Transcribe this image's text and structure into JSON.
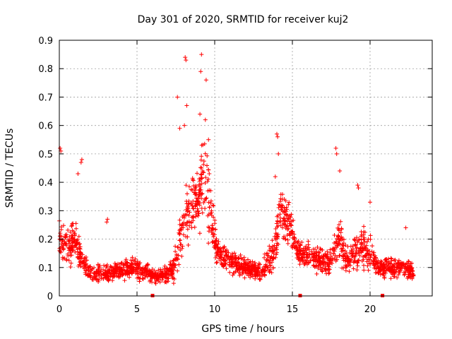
{
  "chart_data": {
    "type": "scatter",
    "title": "Day 301 of 2020, SRMTID for receiver kuj2",
    "xlabel": "GPS time / hours",
    "ylabel": "SRMTID / TECUs",
    "xlim": [
      0,
      24
    ],
    "ylim": [
      0,
      0.9
    ],
    "xticks": [
      0,
      5,
      10,
      15,
      20
    ],
    "xtick_labels": [
      "0",
      "5",
      "10",
      "15",
      "20"
    ],
    "yticks": [
      0,
      0.1,
      0.2,
      0.3,
      0.4,
      0.5,
      0.6,
      0.7,
      0.8,
      0.9
    ],
    "ytick_labels": [
      "0",
      "0.1",
      "0.2",
      "0.3",
      "0.4",
      "0.5",
      "0.6",
      "0.7",
      "0.8",
      "0.9"
    ],
    "grid": true,
    "marker": "+",
    "color": "#ff0000",
    "series_name": "SRMTID",
    "bottom_markers_x": [
      6.0,
      15.5,
      20.8
    ],
    "envelope_hours": [
      0,
      0.5,
      1.0,
      1.5,
      2.0,
      3.0,
      4.0,
      5.0,
      6.0,
      7.0,
      7.5,
      8.0,
      8.5,
      9.0,
      9.3,
      9.7,
      10.2,
      11.0,
      12.0,
      13.0,
      13.8,
      14.3,
      14.8,
      15.3,
      16.0,
      17.0,
      17.5,
      18.0,
      18.5,
      19.0,
      19.5,
      20.0,
      20.5,
      21.0,
      22.0,
      22.5,
      22.8
    ],
    "envelope_median": [
      0.2,
      0.18,
      0.2,
      0.12,
      0.08,
      0.08,
      0.09,
      0.1,
      0.07,
      0.08,
      0.12,
      0.25,
      0.3,
      0.35,
      0.45,
      0.3,
      0.15,
      0.12,
      0.1,
      0.08,
      0.15,
      0.3,
      0.25,
      0.15,
      0.15,
      0.12,
      0.12,
      0.2,
      0.12,
      0.15,
      0.18,
      0.15,
      0.1,
      0.1,
      0.1,
      0.1,
      0.08
    ],
    "spread": [
      0.09,
      0.09,
      0.09,
      0.05,
      0.04,
      0.04,
      0.04,
      0.05,
      0.03,
      0.04,
      0.07,
      0.13,
      0.15,
      0.17,
      0.18,
      0.15,
      0.06,
      0.05,
      0.04,
      0.04,
      0.08,
      0.12,
      0.1,
      0.06,
      0.06,
      0.05,
      0.06,
      0.09,
      0.06,
      0.08,
      0.09,
      0.07,
      0.04,
      0.04,
      0.04,
      0.04,
      0.03
    ],
    "points_per_hour": 90,
    "outliers": [
      {
        "x": 0.05,
        "y": 0.52
      },
      {
        "x": 0.1,
        "y": 0.51
      },
      {
        "x": 1.45,
        "y": 0.48
      },
      {
        "x": 1.4,
        "y": 0.47
      },
      {
        "x": 1.2,
        "y": 0.43
      },
      {
        "x": 3.1,
        "y": 0.27
      },
      {
        "x": 3.05,
        "y": 0.26
      },
      {
        "x": 7.6,
        "y": 0.7
      },
      {
        "x": 8.1,
        "y": 0.84
      },
      {
        "x": 8.15,
        "y": 0.83
      },
      {
        "x": 8.2,
        "y": 0.67
      },
      {
        "x": 7.75,
        "y": 0.59
      },
      {
        "x": 8.05,
        "y": 0.6
      },
      {
        "x": 9.15,
        "y": 0.85
      },
      {
        "x": 9.1,
        "y": 0.79
      },
      {
        "x": 9.45,
        "y": 0.76
      },
      {
        "x": 9.05,
        "y": 0.64
      },
      {
        "x": 9.4,
        "y": 0.62
      },
      {
        "x": 9.6,
        "y": 0.55
      },
      {
        "x": 14.0,
        "y": 0.57
      },
      {
        "x": 14.05,
        "y": 0.56
      },
      {
        "x": 14.1,
        "y": 0.5
      },
      {
        "x": 13.9,
        "y": 0.42
      },
      {
        "x": 17.8,
        "y": 0.52
      },
      {
        "x": 17.85,
        "y": 0.5
      },
      {
        "x": 18.05,
        "y": 0.44
      },
      {
        "x": 19.2,
        "y": 0.39
      },
      {
        "x": 19.25,
        "y": 0.38
      },
      {
        "x": 20.0,
        "y": 0.33
      },
      {
        "x": 22.3,
        "y": 0.24
      }
    ]
  }
}
